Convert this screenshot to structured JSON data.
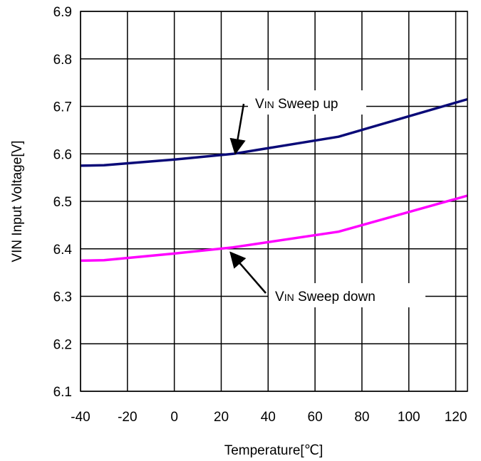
{
  "chart_data": {
    "type": "line",
    "xlabel": "Temperature[℃]",
    "ylabel": "VIN Input Voltage[V]",
    "xlim": [
      -40,
      125
    ],
    "ylim": [
      6.1,
      6.9
    ],
    "x_ticks": [
      -40,
      -20,
      0,
      20,
      40,
      60,
      80,
      100,
      120
    ],
    "y_ticks": [
      6.1,
      6.2,
      6.3,
      6.4,
      6.5,
      6.6,
      6.7,
      6.8,
      6.9
    ],
    "x_tick_labels": [
      "-40",
      "-20",
      "0",
      "20",
      "40",
      "60",
      "80",
      "100",
      "120"
    ],
    "y_tick_labels": [
      "6.1",
      "6.2",
      "6.3",
      "6.4",
      "6.5",
      "6.6",
      "6.7",
      "6.8",
      "6.9"
    ],
    "grid": true,
    "series": [
      {
        "color": "#0a0a78",
        "x": [
          -40,
          -30,
          0,
          25,
          70,
          125
        ],
        "y": [
          6.575,
          6.576,
          6.588,
          6.6,
          6.636,
          6.715
        ]
      },
      {
        "color": "#ff00ff",
        "x": [
          -40,
          -30,
          0,
          25,
          70,
          125
        ],
        "y": [
          6.375,
          6.376,
          6.39,
          6.403,
          6.436,
          6.512
        ]
      }
    ],
    "annotations": [
      {
        "main": "V",
        "sub": "IN",
        "rest": " Sweep up",
        "arrow_to": [
          26,
          6.601
        ]
      },
      {
        "main": "V",
        "sub": "IN",
        "rest": " Sweep down",
        "arrow_to": [
          24,
          6.392
        ]
      }
    ]
  }
}
